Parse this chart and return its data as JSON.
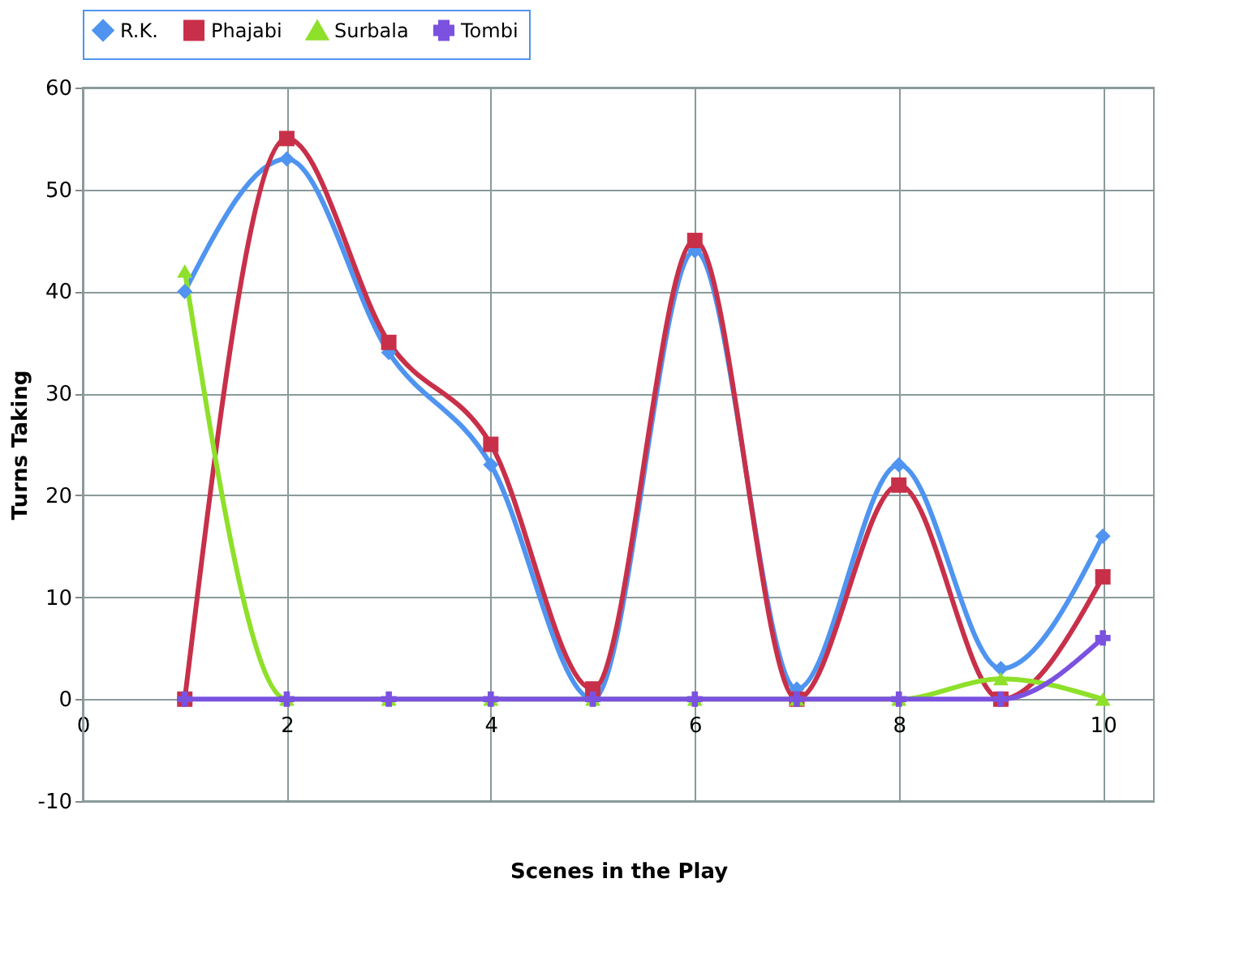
{
  "chart_data": {
    "type": "line",
    "xlabel": "Scenes in the Play",
    "ylabel": "Turns Taking",
    "x": [
      1,
      2,
      3,
      4,
      5,
      6,
      7,
      8,
      9,
      10
    ],
    "series": [
      {
        "name": "R.K.",
        "color": "#4f94f0",
        "marker": "diamond",
        "values": [
          40,
          53,
          34,
          23,
          0,
          44,
          1,
          23,
          3,
          16
        ]
      },
      {
        "name": "Phajabi",
        "color": "#c8304a",
        "marker": "square",
        "values": [
          0,
          55,
          35,
          25,
          1,
          45,
          0,
          21,
          0,
          12
        ]
      },
      {
        "name": "Surbala",
        "color": "#8ee02a",
        "marker": "triangle",
        "values": [
          42,
          0,
          0,
          0,
          0,
          0,
          0,
          0,
          2,
          0
        ]
      },
      {
        "name": "Tombi",
        "color": "#7b52e0",
        "marker": "cross",
        "values": [
          0,
          0,
          0,
          0,
          0,
          0,
          0,
          0,
          0,
          6
        ]
      }
    ],
    "xlim": [
      0,
      10.5
    ],
    "xticks": [
      0,
      2,
      4,
      6,
      8,
      10
    ],
    "ylim": [
      -10,
      60
    ],
    "yticks": [
      -10,
      0,
      10,
      20,
      30,
      40,
      50,
      60
    ],
    "grid": true,
    "legend": "top",
    "line_style": "solid"
  }
}
